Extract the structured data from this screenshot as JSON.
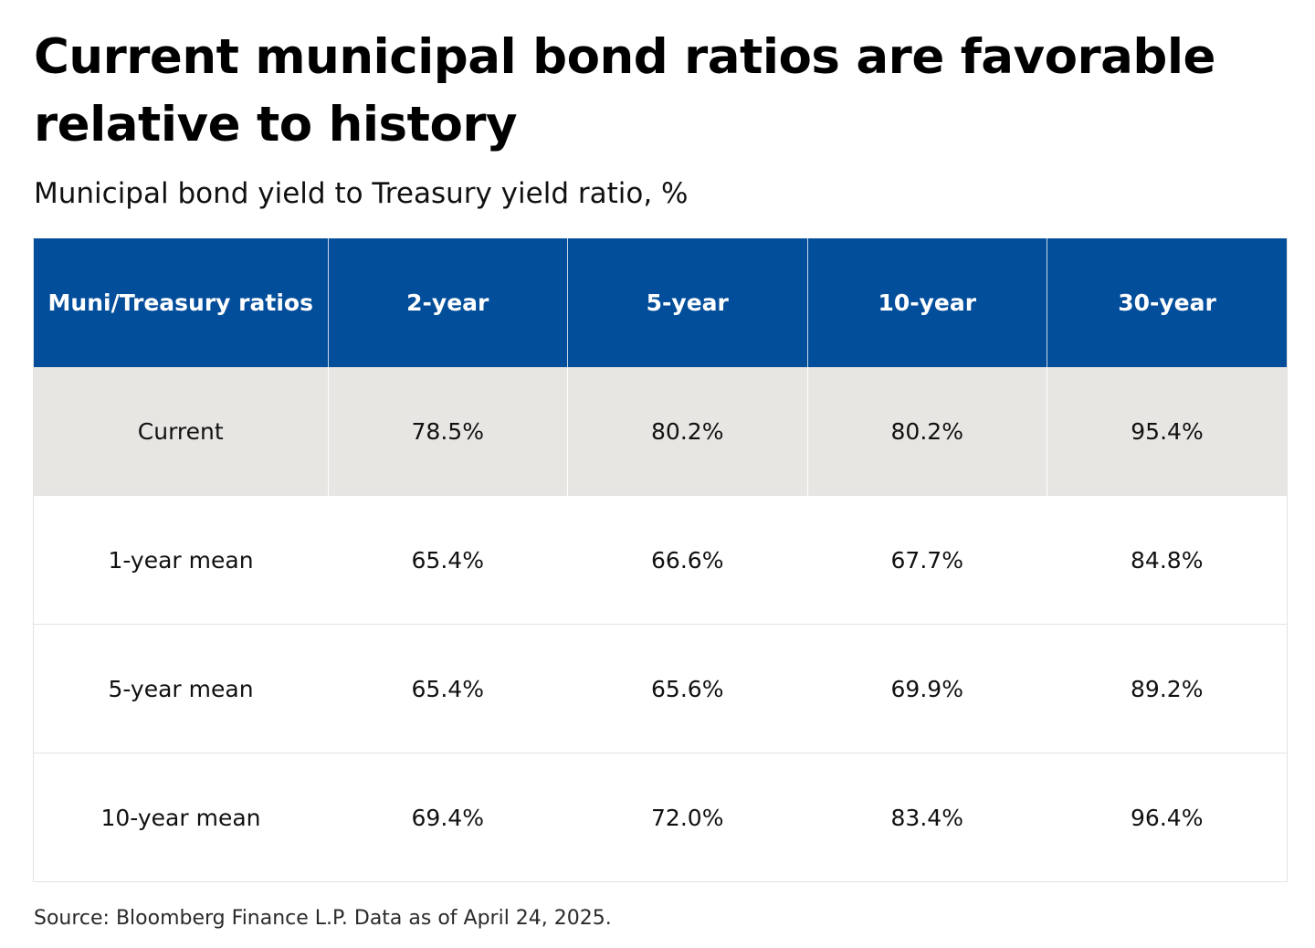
{
  "title": "Current municipal bond ratios are favorable relative to history",
  "subtitle": "Municipal bond yield to Treasury yield ratio, %",
  "source": "Source: Bloomberg Finance L.P. Data as of April 24, 2025.",
  "colors": {
    "header_bg": "#034e9b",
    "header_text": "#ffffff",
    "highlight_row_bg": "#e8e6e3"
  },
  "chart_data": {
    "type": "table",
    "title": "Current municipal bond ratios are favorable relative to history",
    "subtitle": "Municipal bond yield to Treasury yield ratio, %",
    "columns": [
      "Muni/Treasury ratios",
      "2-year",
      "5-year",
      "10-year",
      "30-year"
    ],
    "rows": [
      {
        "label": "Current",
        "values": [
          "78.5%",
          "80.2%",
          "80.2%",
          "95.4%"
        ]
      },
      {
        "label": "1-year mean",
        "values": [
          "65.4%",
          "66.6%",
          "67.7%",
          "84.8%"
        ]
      },
      {
        "label": "5-year mean",
        "values": [
          "65.4%",
          "65.6%",
          "69.9%",
          "89.2%"
        ]
      },
      {
        "label": "10-year mean",
        "values": [
          "69.4%",
          "72.0%",
          "83.4%",
          "96.4%"
        ]
      }
    ],
    "source": "Source: Bloomberg Finance L.P. Data as of April 24, 2025."
  }
}
